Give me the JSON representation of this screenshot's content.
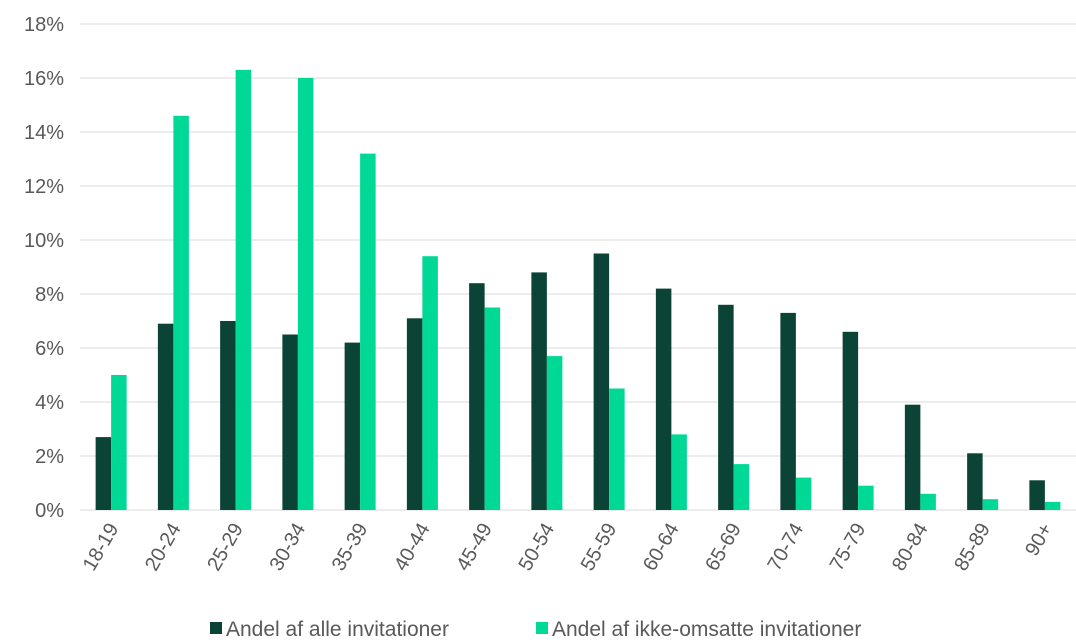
{
  "chart_data": {
    "type": "bar",
    "title": "",
    "xlabel": "",
    "ylabel": "",
    "categories": [
      "18-19",
      "20-24",
      "25-29",
      "30-34",
      "35-39",
      "40-44",
      "45-49",
      "50-54",
      "55-59",
      "60-64",
      "65-69",
      "70-74",
      "75-79",
      "80-84",
      "85-89",
      "90+"
    ],
    "series": [
      {
        "name": "Andel af alle invitationer",
        "color": "#0b4336",
        "values": [
          2.7,
          6.9,
          7.0,
          6.5,
          6.2,
          7.1,
          8.4,
          8.8,
          9.5,
          8.2,
          7.6,
          7.3,
          6.6,
          3.9,
          2.1,
          1.1
        ]
      },
      {
        "name": "Andel af ikke-omsatte invitationer",
        "color": "#00d896",
        "values": [
          5.0,
          14.6,
          16.3,
          16.0,
          13.2,
          9.4,
          7.5,
          5.7,
          4.5,
          2.8,
          1.7,
          1.2,
          0.9,
          0.6,
          0.4,
          0.3
        ]
      }
    ],
    "ylim": [
      0,
      18
    ],
    "yticks": [
      "0%",
      "2%",
      "4%",
      "6%",
      "8%",
      "10%",
      "12%",
      "14%",
      "16%",
      "18%"
    ],
    "grid": true,
    "legend_position": "bottom"
  }
}
